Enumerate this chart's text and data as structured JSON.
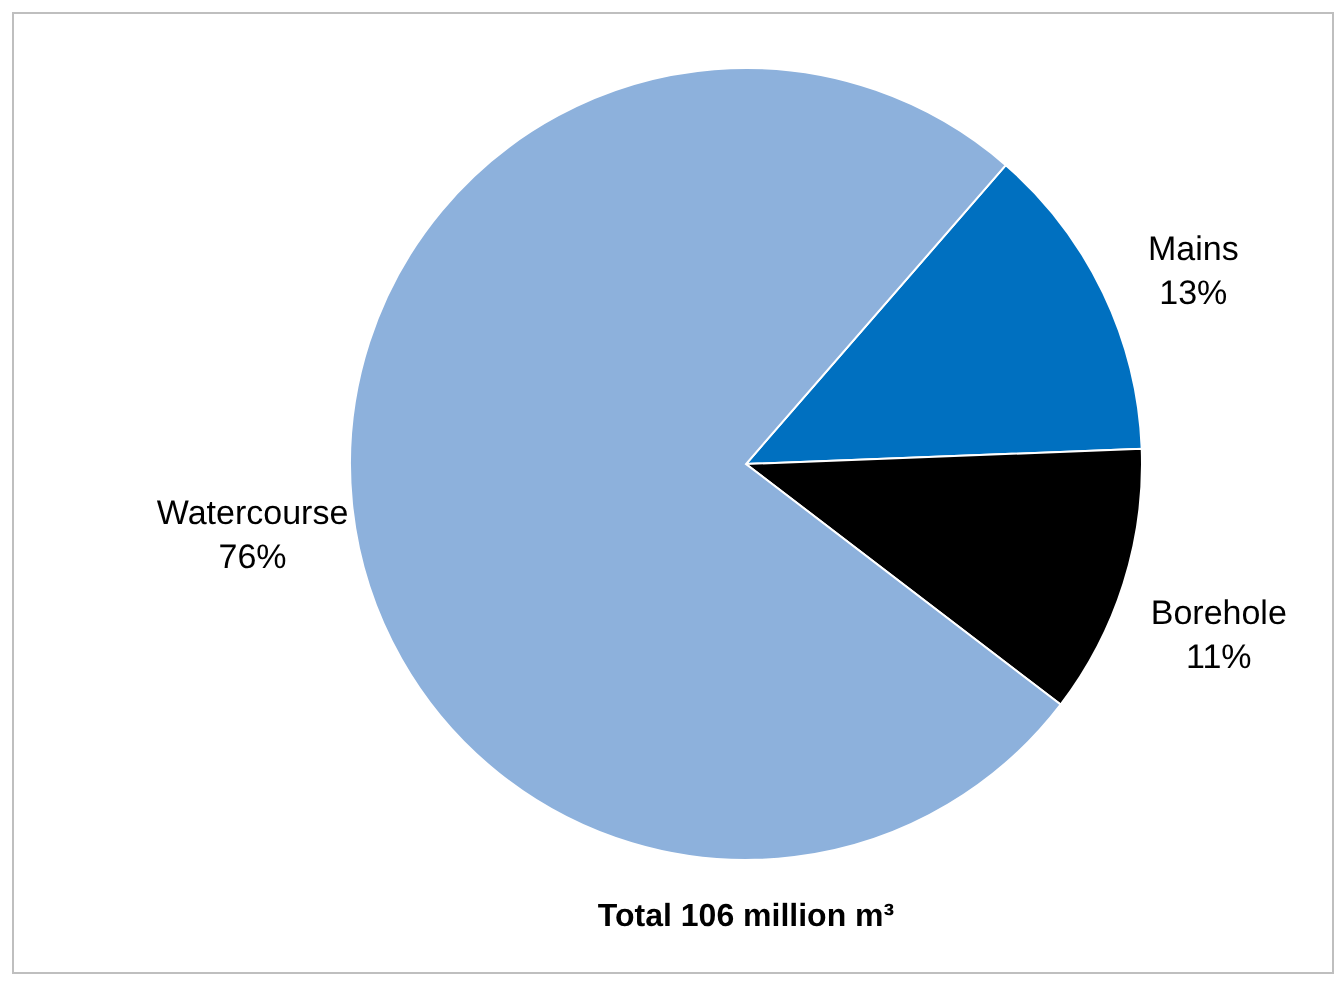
{
  "chart_data": {
    "type": "pie",
    "title": "Total 106 million m³",
    "categories": [
      "Mains",
      "Borehole",
      "Watercourse"
    ],
    "values": [
      13,
      11,
      76
    ],
    "value_labels": [
      "13%",
      "11%",
      "76%"
    ],
    "colors": [
      "#0070c0",
      "#000000",
      "#8db1dc"
    ]
  }
}
